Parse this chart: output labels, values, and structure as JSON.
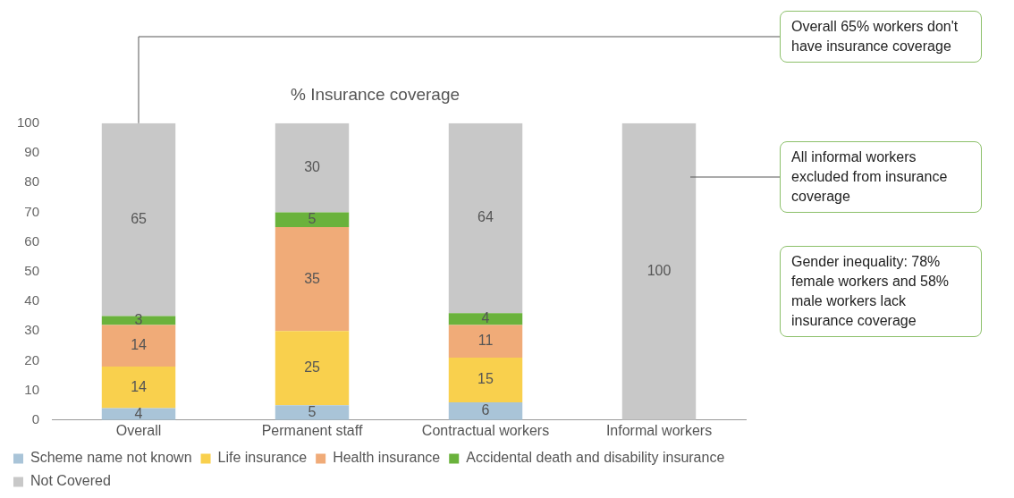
{
  "chart_data": {
    "type": "bar",
    "title": "% Insurance coverage",
    "stacked": true,
    "categories": [
      "Overall",
      "Permanent staff",
      "Contractual workers",
      "Informal workers"
    ],
    "series": [
      {
        "name": "Scheme name not known",
        "color": "#a9c4d8",
        "values": [
          4,
          5,
          6,
          null
        ]
      },
      {
        "name": "Life insurance",
        "color": "#f9d04d",
        "values": [
          14,
          25,
          15,
          null
        ]
      },
      {
        "name": "Health insurance",
        "color": "#f0ab78",
        "values": [
          14,
          35,
          11,
          null
        ]
      },
      {
        "name": "Accidental death and disability insurance",
        "color": "#6ab23c",
        "values": [
          3,
          5,
          4,
          null
        ]
      },
      {
        "name": "Not Covered",
        "color": "#c8c8c8",
        "values": [
          65,
          30,
          64,
          100
        ]
      }
    ],
    "ylim": [
      0,
      100
    ],
    "yticks": [
      0,
      10,
      20,
      30,
      40,
      50,
      60,
      70,
      80,
      90,
      100
    ],
    "grid": false,
    "legend": "bottom",
    "data_labels": true,
    "annotations": [
      "Overall 65% workers don't have insurance coverage",
      "All informal workers excluded from insurance coverage",
      "Gender inequality: 78% female workers and 58% male workers lack insurance coverage"
    ]
  }
}
